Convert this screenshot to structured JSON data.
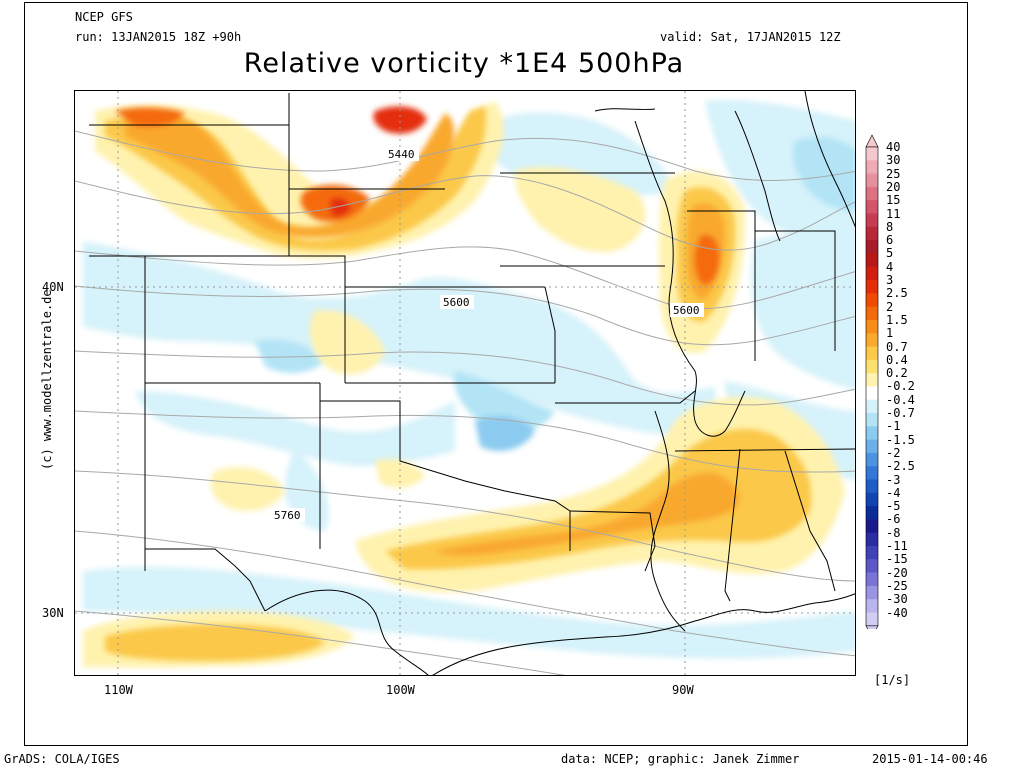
{
  "header": {
    "model": "NCEP GFS",
    "run": "run: 13JAN2015 18Z +90h",
    "valid": "valid: Sat, 17JAN2015 12Z",
    "title": "Relative vorticity *1E4 500hPa"
  },
  "axes": {
    "lon_labels": [
      "110W",
      "100W",
      "90W"
    ],
    "lat_labels": [
      "40N",
      "30N"
    ]
  },
  "contour_labels": [
    "5440",
    "5600",
    "5600",
    "5760"
  ],
  "colorbar": {
    "levels": [
      "40",
      "30",
      "25",
      "20",
      "15",
      "11",
      "8",
      "6",
      "5",
      "4",
      "3",
      "2.5",
      "2",
      "1.5",
      "1",
      "0.7",
      "0.4",
      "0.2",
      "-0.2",
      "-0.4",
      "-0.7",
      "-1",
      "-1.5",
      "-2",
      "-2.5",
      "-3",
      "-4",
      "-5",
      "-6",
      "-8",
      "-11",
      "-15",
      "-20",
      "-25",
      "-30",
      "-40"
    ],
    "colors": [
      "#f5c8cf",
      "#f0aab5",
      "#e8909d",
      "#de7282",
      "#d4546a",
      "#c83c52",
      "#b82838",
      "#a81c2a",
      "#b81818",
      "#d01e10",
      "#e42e08",
      "#f04a04",
      "#f46a0a",
      "#f88c18",
      "#f9a82e",
      "#fbc848",
      "#fde070",
      "#fff2ae",
      "#ffffff",
      "#d6f2fa",
      "#b2e4f6",
      "#8ccbf0",
      "#6bb0ea",
      "#4a94e2",
      "#3278d8",
      "#1e5cc8",
      "#1444b2",
      "#0c2c98",
      "#1a1a8c",
      "#2c2ca4",
      "#4040b8",
      "#5c58c8",
      "#7a74d6",
      "#9a94e2",
      "#b8b4ec",
      "#d0ccf4"
    ],
    "unit": "[1/s]"
  },
  "credits": {
    "site": "(c) www.modellzentrale.de",
    "software": "GrADS: COLA/IGES",
    "source": "data: NCEP; graphic: Janek Zimmer",
    "timestamp": "2015-01-14-00:46"
  }
}
